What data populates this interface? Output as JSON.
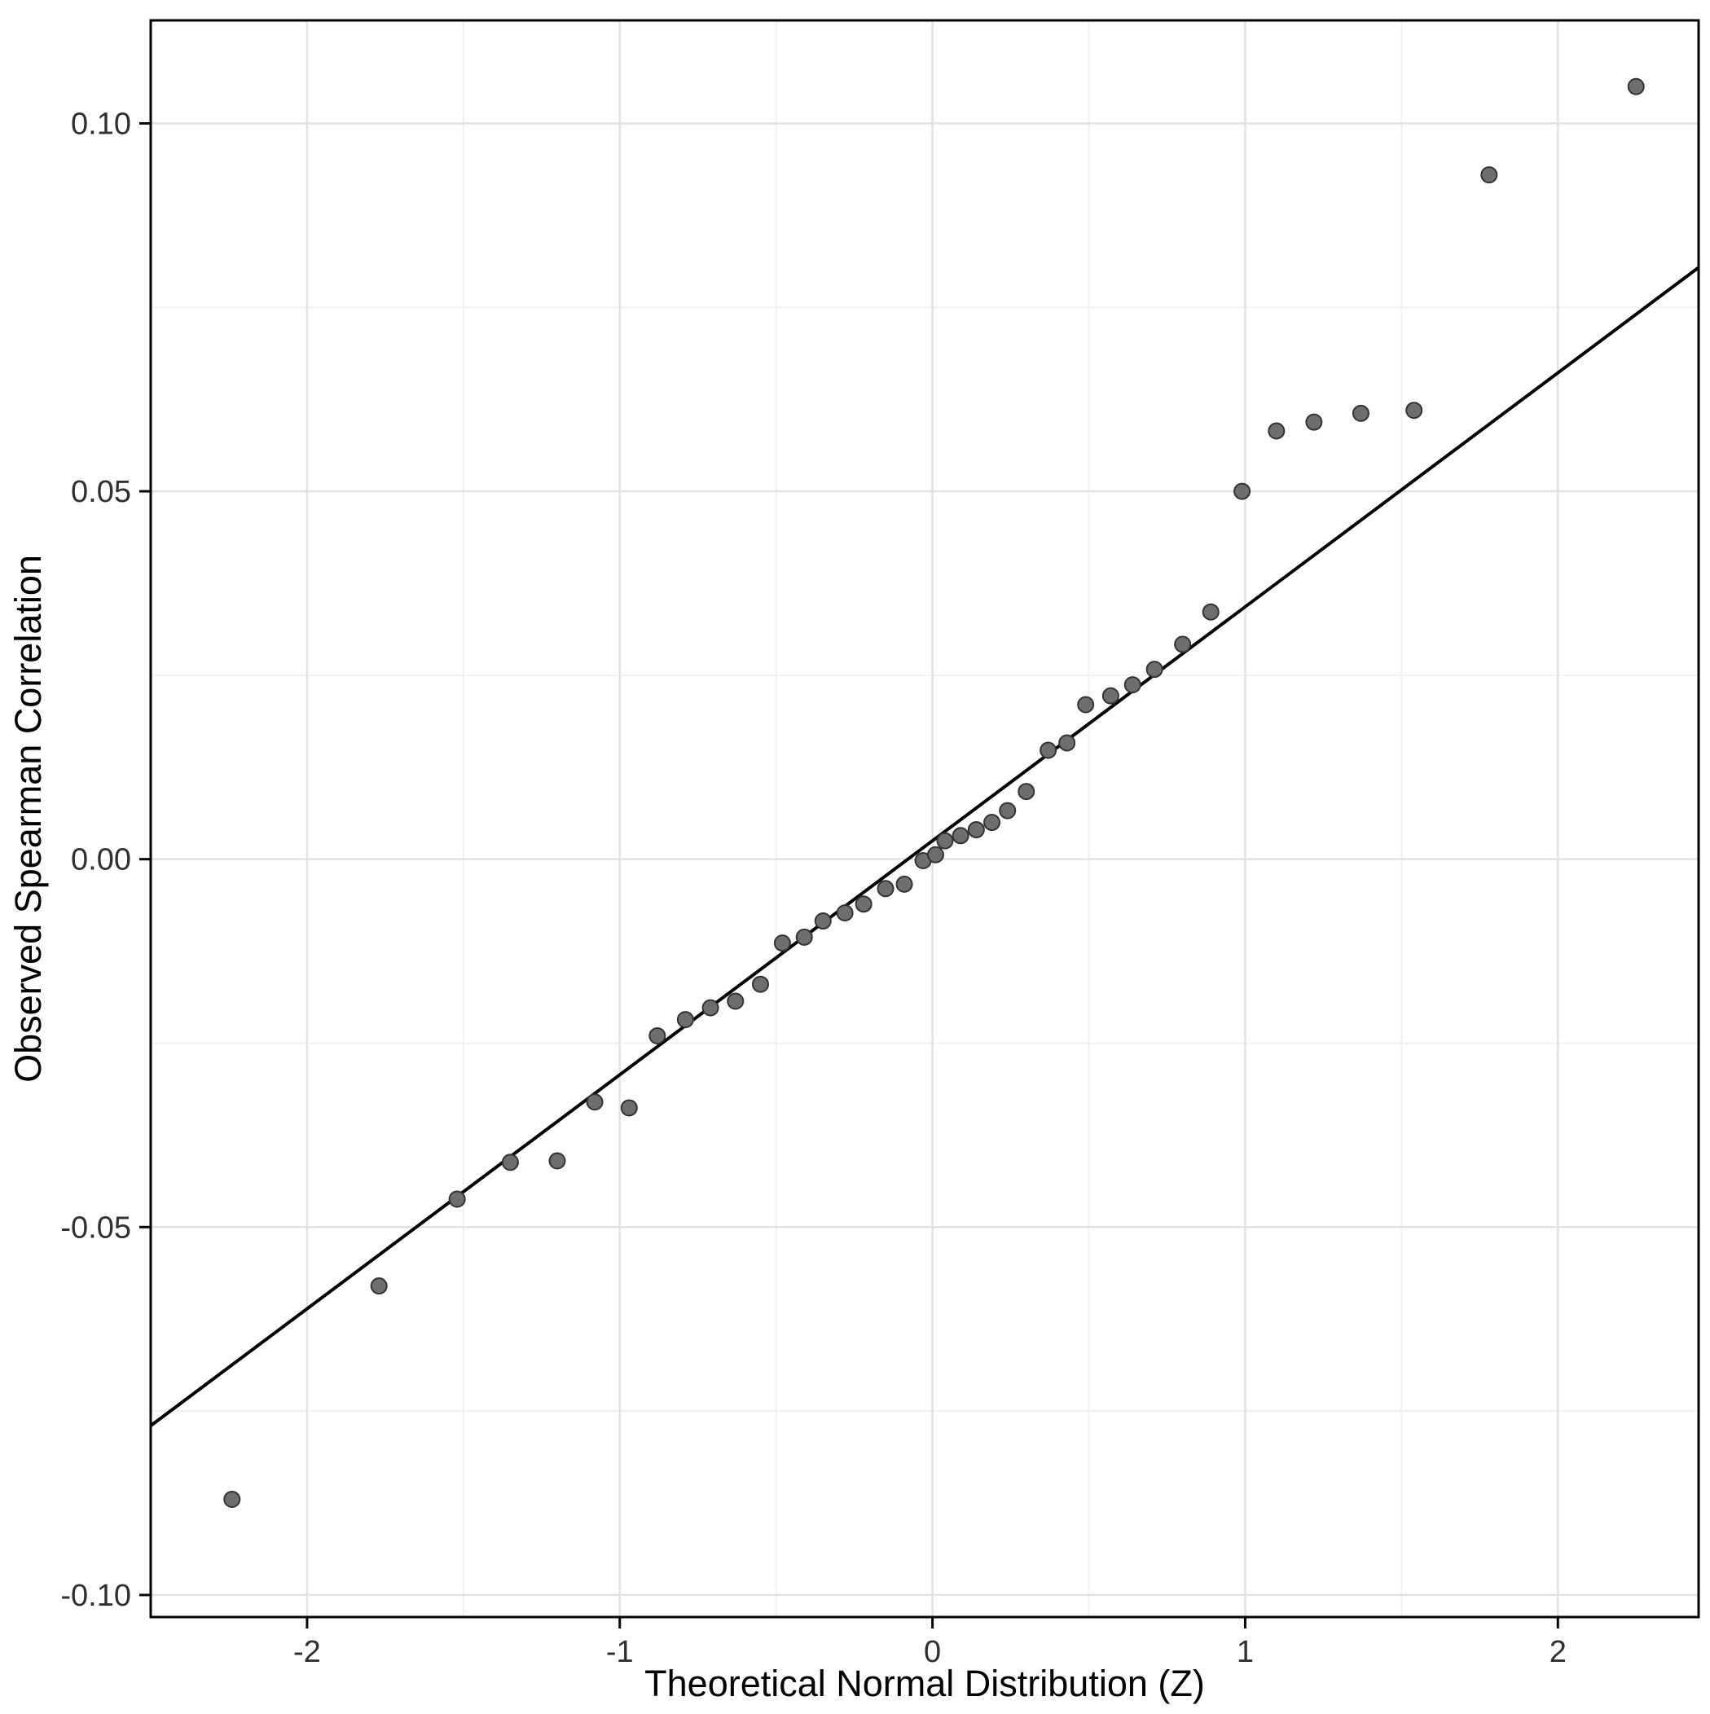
{
  "chart_data": {
    "type": "scatter",
    "title": "",
    "xlabel": "Theoretical Normal Distribution (Z)",
    "ylabel": "Observed Spearman Correlation",
    "xlim": [
      -2.5,
      2.45
    ],
    "ylim": [
      -0.103,
      0.114
    ],
    "grid": true,
    "legend": "none",
    "x_ticks": [
      {
        "value": -2,
        "label": "-2"
      },
      {
        "value": -1,
        "label": "-1"
      },
      {
        "value": 0,
        "label": "0"
      },
      {
        "value": 1,
        "label": "1"
      },
      {
        "value": 2,
        "label": "2"
      }
    ],
    "y_ticks": [
      {
        "value": -0.1,
        "label": "-0.10"
      },
      {
        "value": -0.05,
        "label": "-0.05"
      },
      {
        "value": 0.0,
        "label": "0.00"
      },
      {
        "value": 0.05,
        "label": "0.05"
      },
      {
        "value": 0.1,
        "label": "0.10"
      }
    ],
    "x_minor_ticks": [
      -1.5,
      -0.5,
      0.5,
      1.5
    ],
    "y_minor_ticks": [
      -0.075,
      -0.025,
      0.025,
      0.075
    ],
    "reference_line": {
      "intercept": 0.0025,
      "slope": 0.0318
    },
    "points": [
      [
        -2.24,
        -0.087
      ],
      [
        -1.77,
        -0.058
      ],
      [
        -1.52,
        -0.0462
      ],
      [
        -1.35,
        -0.0412
      ],
      [
        -1.2,
        -0.041
      ],
      [
        -1.08,
        -0.033
      ],
      [
        -0.97,
        -0.0338
      ],
      [
        -0.88,
        -0.024
      ],
      [
        -0.79,
        -0.0218
      ],
      [
        -0.71,
        -0.0202
      ],
      [
        -0.63,
        -0.0193
      ],
      [
        -0.55,
        -0.017
      ],
      [
        -0.48,
        -0.0114
      ],
      [
        -0.41,
        -0.0106
      ],
      [
        -0.35,
        -0.0084
      ],
      [
        -0.28,
        -0.0073
      ],
      [
        -0.22,
        -0.0061
      ],
      [
        -0.15,
        -0.004
      ],
      [
        -0.09,
        -0.0034
      ],
      [
        -0.03,
        -0.0002
      ],
      [
        0.01,
        0.0006
      ],
      [
        0.04,
        0.0025
      ],
      [
        0.09,
        0.0032
      ],
      [
        0.14,
        0.004
      ],
      [
        0.19,
        0.005
      ],
      [
        0.24,
        0.0066
      ],
      [
        0.3,
        0.0092
      ],
      [
        0.37,
        0.0148
      ],
      [
        0.43,
        0.0158
      ],
      [
        0.49,
        0.021
      ],
      [
        0.57,
        0.0222
      ],
      [
        0.64,
        0.0237
      ],
      [
        0.71,
        0.0258
      ],
      [
        0.8,
        0.0292
      ],
      [
        0.89,
        0.0336
      ],
      [
        0.99,
        0.05
      ],
      [
        1.1,
        0.0582
      ],
      [
        1.22,
        0.0594
      ],
      [
        1.37,
        0.0606
      ],
      [
        1.54,
        0.061
      ],
      [
        1.78,
        0.093
      ],
      [
        2.25,
        0.105
      ]
    ],
    "colors": {
      "point_fill": "#6e6e6e",
      "point_stroke": "#333333",
      "reference_line": "#000000",
      "grid_major": "#e2e2e2",
      "grid_minor": "#f0f0f0",
      "panel_border": "#000000",
      "panel_background": "#ffffff",
      "tick_mark": "#000000"
    }
  }
}
